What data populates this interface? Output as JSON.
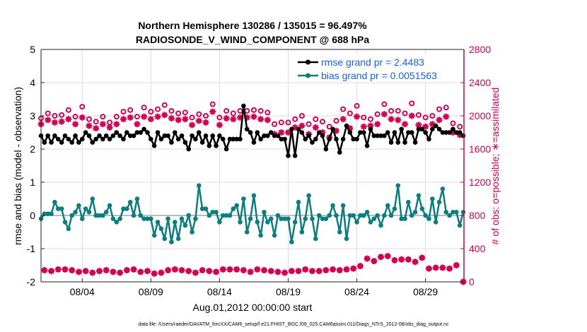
{
  "chart_data": {
    "type": "line",
    "title": [
      "Northern Hemisphere 130286 / 135015 = 96.497%",
      "RADIOSONDE_V_WIND_COMPONENT @ 688 hPa"
    ],
    "xlabel": "Aug.01,2012 00:00:00 start",
    "ylabel_left": "rmse and bias (model - observation)",
    "ylabel_right": "# of obs: o=possible; ∗=assimilated",
    "footer": "data file: /Users/raeder/DAI/ATM_forcXX/CAM6_setup/f.e21.FHIST_BGC.f09_025.CAM6assim.011/Diags_NTrS_2012-08/obs_diag_output.nc",
    "xlim_days": [
      0,
      30.8
    ],
    "x_ticks": [
      {
        "day": 3,
        "label": "08/04"
      },
      {
        "day": 8,
        "label": "08/09"
      },
      {
        "day": 13,
        "label": "08/14"
      },
      {
        "day": 18,
        "label": "08/19"
      },
      {
        "day": 23,
        "label": "08/24"
      },
      {
        "day": 28,
        "label": "08/29"
      }
    ],
    "ylim_left": [
      -2,
      5
    ],
    "yticks_left": [
      "-2",
      "-1",
      "0",
      "1",
      "2",
      "3",
      "4",
      "5"
    ],
    "ylim_right": [
      0,
      2800
    ],
    "yticks_right": [
      "0",
      "400",
      "800",
      "1200",
      "1600",
      "2000",
      "2400",
      "2800"
    ],
    "legend": {
      "placement": "top-right",
      "entries": [
        "rmse grand pr = 2.4483",
        "bias grand pr = 0.0051563"
      ]
    },
    "colors": {
      "rmse": "#000000",
      "bias": "#0b7f7f",
      "obs": "#d6004f",
      "legend_text": "#1560ff"
    },
    "step_hours": 6,
    "rmse": [
      2.4,
      2.2,
      2.4,
      2.2,
      2.4,
      2.3,
      2.2,
      2.4,
      2.3,
      2.2,
      2.4,
      2.2,
      2.3,
      2.5,
      2.4,
      2.2,
      2.3,
      2.4,
      2.3,
      2.4,
      2.3,
      2.4,
      2.5,
      2.4,
      2.3,
      2.5,
      2.4,
      2.4,
      2.5,
      2.5,
      2.6,
      2.5,
      2.3,
      2.1,
      2.5,
      2.3,
      2.4,
      2.4,
      2.2,
      2.5,
      2.3,
      2.4,
      2.2,
      2.0,
      2.4,
      2.3,
      2.5,
      2.2,
      2.4,
      2.1,
      2.4,
      2.1,
      2.4,
      2.3,
      2.0,
      2.3,
      2.3,
      2.3,
      2.3,
      3.3,
      2.6,
      2.5,
      2.2,
      2.5,
      2.3,
      2.4,
      2.4,
      2.5,
      2.4,
      2.4,
      2.3,
      2.3,
      1.8,
      2.6,
      1.8,
      2.6,
      2.5,
      2.3,
      2.4,
      2.2,
      2.3,
      2.5,
      2.4,
      2.0,
      2.3,
      2.6,
      2.3,
      1.9,
      2.3,
      2.7,
      2.5,
      2.3,
      2.3,
      2.5,
      2.5,
      2.1,
      2.6,
      2.4,
      2.4,
      2.4,
      2.4,
      2.5,
      2.2,
      2.5,
      2.2,
      2.6,
      2.2,
      2.5,
      2.5,
      2.2,
      2.6,
      2.6,
      2.5,
      2.3,
      2.6,
      2.7,
      2.6,
      2.5,
      2.5,
      2.5,
      2.6,
      2.5,
      2.5,
      2.4
    ],
    "bias": [
      -0.1,
      0.05,
      0.05,
      0.05,
      0.4,
      0.2,
      0.2,
      -0.2,
      -0.4,
      0.0,
      0.1,
      0.3,
      -0.1,
      0.2,
      0.1,
      0.5,
      0.0,
      0.0,
      0.0,
      0.1,
      0.3,
      -0.1,
      -0.2,
      -0.1,
      0.2,
      0.2,
      0.4,
      0.0,
      0.5,
      0.0,
      -0.1,
      -0.1,
      -0.1,
      -0.6,
      -0.2,
      -0.4,
      -0.7,
      -0.1,
      -0.8,
      -0.2,
      -0.7,
      -0.1,
      -0.3,
      0.0,
      -0.5,
      -0.1,
      0.9,
      0.2,
      0.2,
      0.0,
      0.1,
      0.1,
      -0.2,
      0.0,
      0.0,
      0.0,
      0.2,
      0.3,
      -0.2,
      0.5,
      -0.5,
      -0.1,
      0.6,
      -0.2,
      -0.6,
      0.1,
      -0.2,
      -0.1,
      -0.6,
      0.0,
      -0.1,
      -0.1,
      -0.1,
      -0.8,
      -0.2,
      0.4,
      -0.5,
      -0.1,
      0.6,
      -0.1,
      -0.7,
      0.0,
      -0.1,
      -0.1,
      0.0,
      0.3,
      0.0,
      -0.5,
      0.3,
      -0.7,
      0.0,
      0.0,
      -0.2,
      0.0,
      0.0,
      0.1,
      -0.2,
      -0.1,
      0.0,
      -0.3,
      0.0,
      0.3,
      0.0,
      0.2,
      0.9,
      -0.1,
      -0.1,
      0.4,
      0.0,
      0.1,
      0.6,
      0.2,
      0.0,
      -0.1,
      0.5,
      -0.2,
      0.4,
      0.8,
      0.1,
      0.0,
      0.1,
      0.1,
      -0.3,
      0.1
    ],
    "counts_synoptic": {
      "start_hour": 0,
      "step_hours": 12,
      "possible": [
        1970,
        2030,
        2000,
        2010,
        2070,
        1990,
        2110,
        1960,
        1930,
        1990,
        1920,
        1990,
        2050,
        2070,
        1990,
        2100,
        2050,
        2080,
        2130,
        2060,
        2030,
        2040,
        1980,
        2020,
        2000,
        2140,
        1980,
        2060,
        2030,
        2060,
        2060,
        2070,
        2060,
        2040,
        1900,
        1920,
        1920,
        1960,
        2000,
        1900,
        1960,
        1930,
        1870,
        1940,
        2080,
        2030,
        2120,
        1980,
        1960,
        2020,
        2140,
        2060,
        2060,
        2030,
        2150,
        2010,
        1980,
        2000,
        2080,
        2100,
        1910,
        1870
      ],
      "assimilated": [
        1900,
        1950,
        1920,
        1930,
        1960,
        1900,
        1980,
        1880,
        1850,
        1900,
        1860,
        1900,
        1960,
        1980,
        1900,
        1990,
        1960,
        1990,
        2010,
        1970,
        1950,
        1960,
        1890,
        1940,
        1920,
        2050,
        1890,
        1970,
        1960,
        1980,
        1980,
        1990,
        1960,
        1950,
        1780,
        1800,
        1800,
        1860,
        1880,
        1780,
        1860,
        1800,
        1740,
        1820,
        1960,
        1850,
        1990,
        1870,
        1880,
        1900,
        2020,
        1960,
        1950,
        1900,
        2000,
        1890,
        1870,
        1900,
        1950,
        1990,
        1800,
        1770
      ]
    },
    "counts_off_synoptic": {
      "start_hour": 6,
      "step_hours": 12,
      "possible": [
        140,
        130,
        150,
        150,
        140,
        120,
        130,
        110,
        130,
        140,
        120,
        110,
        140,
        150,
        120,
        130,
        100,
        110,
        140,
        150,
        140,
        130,
        110,
        140,
        130,
        120,
        150,
        150,
        150,
        140,
        120,
        150,
        140,
        130,
        120,
        110,
        130,
        130,
        150,
        130,
        130,
        140,
        150,
        140,
        150,
        160,
        190,
        280,
        250,
        300,
        310,
        260,
        270,
        270,
        240,
        290,
        160,
        170,
        170,
        160,
        200,
        0
      ],
      "assimilated": [
        140,
        130,
        150,
        150,
        140,
        120,
        130,
        110,
        130,
        140,
        120,
        110,
        140,
        150,
        120,
        130,
        100,
        110,
        140,
        150,
        140,
        130,
        110,
        140,
        130,
        120,
        150,
        150,
        150,
        140,
        120,
        150,
        140,
        130,
        120,
        110,
        130,
        130,
        150,
        130,
        130,
        140,
        150,
        140,
        150,
        160,
        190,
        280,
        250,
        300,
        310,
        260,
        270,
        270,
        240,
        290,
        160,
        170,
        170,
        160,
        200,
        0
      ]
    }
  }
}
